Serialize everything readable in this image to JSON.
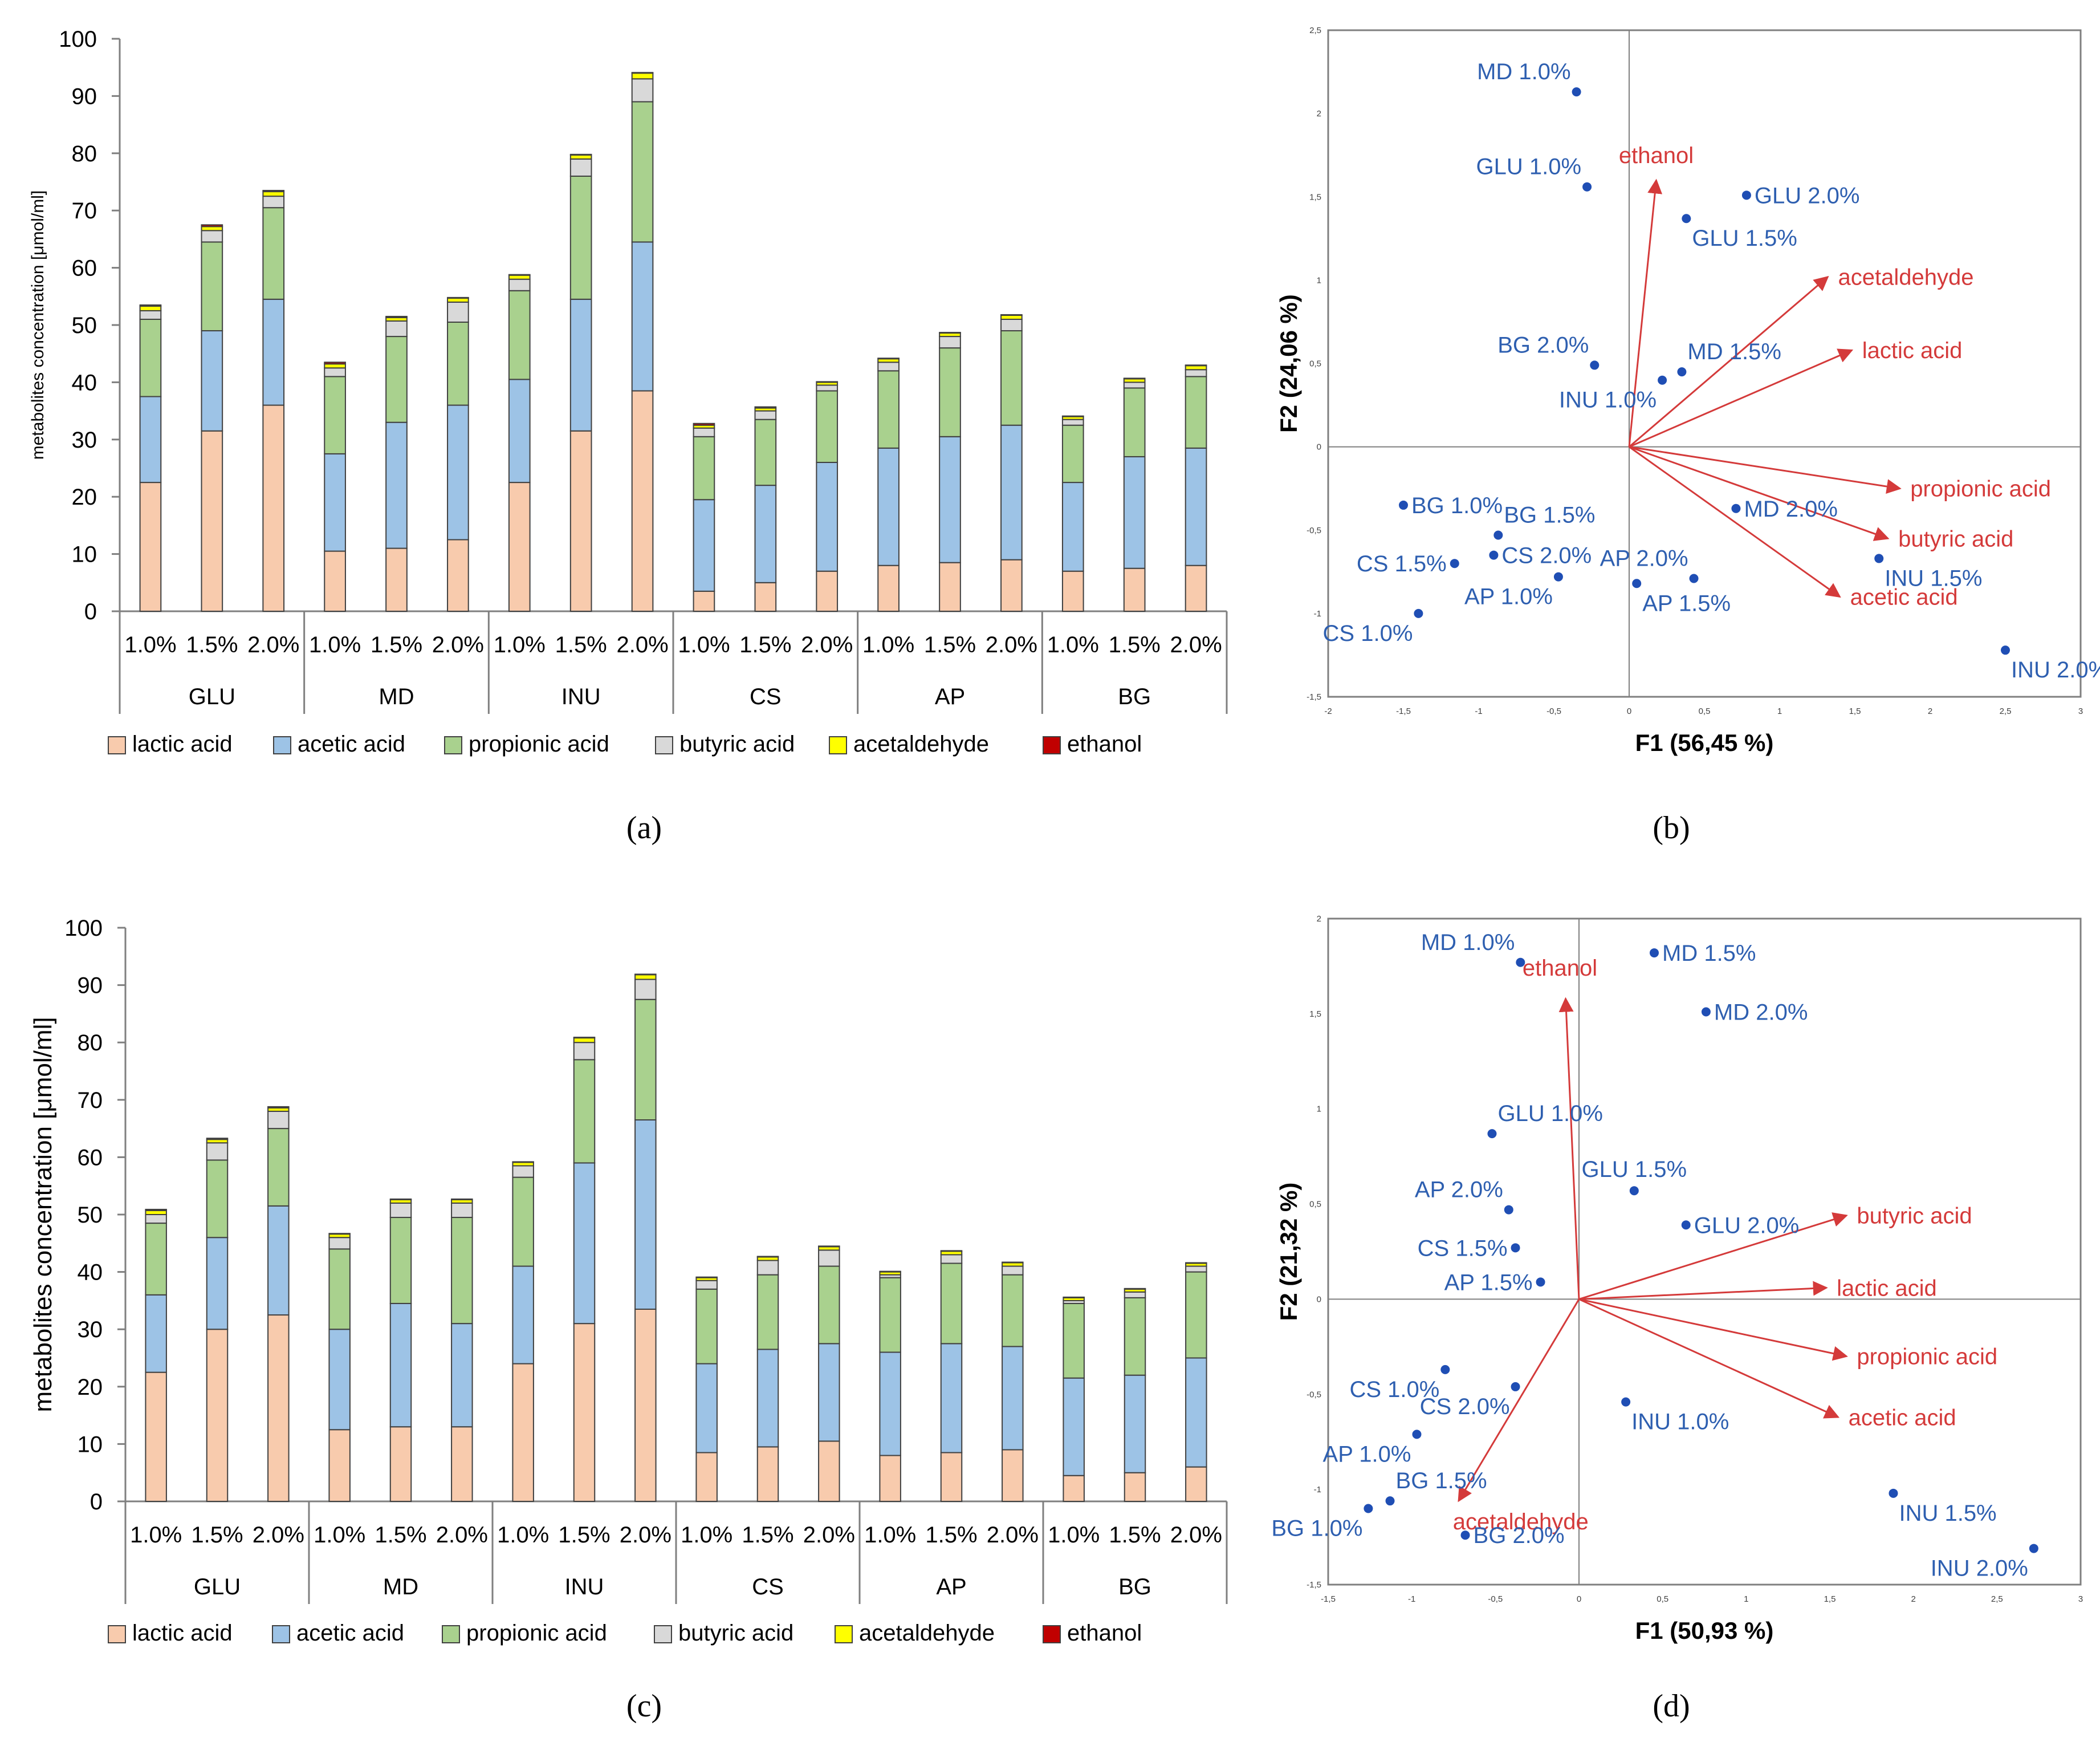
{
  "colors": {
    "lactic": "#f8cbad",
    "acetic": "#9dc3e6",
    "propionic": "#a9d18e",
    "butyric": "#d9d9d9",
    "acetaldehyde": "#ffff00",
    "ethanol": "#c00000",
    "point": "#1f4eb4",
    "label": "#2e5fb0",
    "arrow": "#d43a3a"
  },
  "chart_data": [
    {
      "id": "a",
      "panel_label": "(a)",
      "type": "bar",
      "stacked": true,
      "ylabel": "metabolites concentration [μmol/ml]",
      "ylim": [
        0,
        100
      ],
      "yticks": [
        "0",
        "10",
        "20",
        "30",
        "40",
        "50",
        "60",
        "70",
        "80",
        "90",
        "100"
      ],
      "groups": [
        "GLU",
        "MD",
        "INU",
        "CS",
        "AP",
        "BG"
      ],
      "categories": [
        "1.0%",
        "1.5%",
        "2.0%"
      ],
      "legend": [
        "lactic acid",
        "acetic acid",
        "propionic acid",
        "butyric acid",
        "acetaldehyde",
        "ethanol"
      ],
      "series_keys": [
        "lactic",
        "acetic",
        "propionic",
        "butyric",
        "acetaldehyde",
        "ethanol"
      ],
      "bars": [
        {
          "group": "GLU",
          "cat": "1.0%",
          "values": [
            22.5,
            15.0,
            13.5,
            1.5,
            0.8,
            0.2
          ]
        },
        {
          "group": "GLU",
          "cat": "1.5%",
          "values": [
            31.5,
            17.5,
            15.5,
            2.0,
            0.7,
            0.3
          ]
        },
        {
          "group": "GLU",
          "cat": "2.0%",
          "values": [
            36.0,
            18.5,
            16.0,
            2.0,
            0.8,
            0.2
          ]
        },
        {
          "group": "MD",
          "cat": "1.0%",
          "values": [
            10.5,
            17.0,
            13.5,
            1.5,
            0.7,
            0.3
          ]
        },
        {
          "group": "MD",
          "cat": "1.5%",
          "values": [
            11.0,
            22.0,
            15.0,
            2.7,
            0.6,
            0.2
          ]
        },
        {
          "group": "MD",
          "cat": "2.0%",
          "values": [
            12.5,
            23.5,
            14.5,
            3.5,
            0.7,
            0.1
          ]
        },
        {
          "group": "INU",
          "cat": "1.0%",
          "values": [
            22.5,
            18.0,
            15.5,
            2.0,
            0.7,
            0.1
          ]
        },
        {
          "group": "INU",
          "cat": "1.5%",
          "values": [
            31.5,
            23.0,
            21.5,
            3.0,
            0.7,
            0.1
          ]
        },
        {
          "group": "INU",
          "cat": "2.0%",
          "values": [
            38.5,
            26.0,
            24.5,
            4.0,
            1.0,
            0.1
          ]
        },
        {
          "group": "CS",
          "cat": "1.0%",
          "values": [
            3.5,
            16.0,
            11.0,
            1.5,
            0.5,
            0.3
          ]
        },
        {
          "group": "CS",
          "cat": "1.5%",
          "values": [
            5.0,
            17.0,
            11.5,
            1.5,
            0.5,
            0.2
          ]
        },
        {
          "group": "CS",
          "cat": "2.0%",
          "values": [
            7.0,
            19.0,
            12.5,
            1.0,
            0.5,
            0.1
          ]
        },
        {
          "group": "AP",
          "cat": "1.0%",
          "values": [
            8.0,
            20.5,
            13.5,
            1.5,
            0.6,
            0.1
          ]
        },
        {
          "group": "AP",
          "cat": "1.5%",
          "values": [
            8.5,
            22.0,
            15.5,
            2.0,
            0.6,
            0.1
          ]
        },
        {
          "group": "AP",
          "cat": "2.0%",
          "values": [
            9.0,
            23.5,
            16.5,
            2.0,
            0.7,
            0.1
          ]
        },
        {
          "group": "BG",
          "cat": "1.0%",
          "values": [
            7.0,
            15.5,
            10.0,
            1.0,
            0.5,
            0.1
          ]
        },
        {
          "group": "BG",
          "cat": "1.5%",
          "values": [
            7.5,
            19.5,
            12.0,
            1.0,
            0.6,
            0.1
          ]
        },
        {
          "group": "BG",
          "cat": "2.0%",
          "values": [
            8.0,
            20.5,
            12.5,
            1.2,
            0.7,
            0.1
          ]
        }
      ]
    },
    {
      "id": "b",
      "panel_label": "(b)",
      "type": "scatter",
      "xlabel": "F1 (56,45 %)",
      "ylabel": "F2 (24,06 %)",
      "xlim": [
        -2,
        3
      ],
      "ylim": [
        -1.5,
        2.5
      ],
      "xticks": [
        -2,
        -1.5,
        -1,
        -0.5,
        0,
        0.5,
        1,
        1.5,
        2,
        2.5,
        3
      ],
      "yticks": [
        -1.5,
        -1,
        -0.5,
        0,
        0.5,
        1,
        1.5,
        2,
        2.5
      ],
      "xtick_labels": [
        "-2",
        "-1,5",
        "-1",
        "-0,5",
        "0",
        "0,5",
        "1",
        "1,5",
        "2",
        "2,5",
        "3"
      ],
      "ytick_labels": [
        "-1,5",
        "-1",
        "-0,5",
        "0",
        "0,5",
        "1",
        "1,5",
        "2",
        "2,5"
      ],
      "points": [
        {
          "label": "MD 1.0%",
          "x": -0.35,
          "y": 2.13,
          "pos": "tl"
        },
        {
          "label": "GLU 1.0%",
          "x": -0.28,
          "y": 1.56,
          "pos": "tl"
        },
        {
          "label": "GLU 2.0%",
          "x": 0.78,
          "y": 1.51,
          "pos": "r"
        },
        {
          "label": "GLU 1.5%",
          "x": 0.38,
          "y": 1.37,
          "pos": "br"
        },
        {
          "label": "BG 2.0%",
          "x": -0.23,
          "y": 0.49,
          "pos": "tl"
        },
        {
          "label": "MD 1.5%",
          "x": 0.35,
          "y": 0.45,
          "pos": "tr"
        },
        {
          "label": "INU 1.0%",
          "x": 0.22,
          "y": 0.4,
          "pos": "bl"
        },
        {
          "label": "BG 1.0%",
          "x": -1.5,
          "y": -0.35,
          "pos": "r"
        },
        {
          "label": "BG 1.5%",
          "x": -0.87,
          "y": -0.53,
          "pos": "tr"
        },
        {
          "label": "CS 2.0%",
          "x": -0.9,
          "y": -0.65,
          "pos": "r"
        },
        {
          "label": "CS 1.5%",
          "x": -1.16,
          "y": -0.7,
          "pos": "l"
        },
        {
          "label": "AP 1.0%",
          "x": -0.47,
          "y": -0.78,
          "pos": "bl"
        },
        {
          "label": "AP 1.5%",
          "x": 0.05,
          "y": -0.82,
          "pos": "br"
        },
        {
          "label": "AP 2.0%",
          "x": 0.43,
          "y": -0.79,
          "pos": "tl"
        },
        {
          "label": "MD 2.0%",
          "x": 0.71,
          "y": -0.37,
          "pos": "r"
        },
        {
          "label": "CS 1.0%",
          "x": -1.4,
          "y": -1.0,
          "pos": "bl"
        },
        {
          "label": "INU 1.5%",
          "x": 1.66,
          "y": -0.67,
          "pos": "br"
        },
        {
          "label": "INU 2.0%",
          "x": 2.5,
          "y": -1.22,
          "pos": "br"
        }
      ],
      "vectors": [
        {
          "label": "ethanol",
          "x": 0.18,
          "y": 1.6,
          "pos": "t"
        },
        {
          "label": "acetaldehyde",
          "x": 1.32,
          "y": 1.02,
          "pos": "r"
        },
        {
          "label": "lactic acid",
          "x": 1.48,
          "y": 0.58,
          "pos": "r"
        },
        {
          "label": "propionic acid",
          "x": 1.8,
          "y": -0.25,
          "pos": "r"
        },
        {
          "label": "butyric acid",
          "x": 1.72,
          "y": -0.55,
          "pos": "r"
        },
        {
          "label": "acetic acid",
          "x": 1.4,
          "y": -0.9,
          "pos": "r"
        }
      ]
    },
    {
      "id": "c",
      "panel_label": "(c)",
      "type": "bar",
      "stacked": true,
      "ylabel": "metabolites concentration [μmol/ml]",
      "ylim": [
        0,
        100
      ],
      "yticks": [
        "0",
        "10",
        "20",
        "30",
        "40",
        "50",
        "60",
        "70",
        "80",
        "90",
        "100"
      ],
      "groups": [
        "GLU",
        "MD",
        "INU",
        "CS",
        "AP",
        "BG"
      ],
      "categories": [
        "1.0%",
        "1.5%",
        "2.0%"
      ],
      "legend": [
        "lactic acid",
        "acetic acid",
        "propionic acid",
        "butyric acid",
        "acetaldehyde",
        "ethanol"
      ],
      "series_keys": [
        "lactic",
        "acetic",
        "propionic",
        "butyric",
        "acetaldehyde",
        "ethanol"
      ],
      "bars": [
        {
          "group": "GLU",
          "cat": "1.0%",
          "values": [
            22.5,
            13.5,
            12.5,
            1.5,
            0.7,
            0.2
          ]
        },
        {
          "group": "GLU",
          "cat": "1.5%",
          "values": [
            30.0,
            16.0,
            13.5,
            3.0,
            0.6,
            0.2
          ]
        },
        {
          "group": "GLU",
          "cat": "2.0%",
          "values": [
            32.5,
            19.0,
            13.5,
            3.0,
            0.6,
            0.2
          ]
        },
        {
          "group": "MD",
          "cat": "1.0%",
          "values": [
            12.5,
            17.5,
            14.0,
            2.0,
            0.6,
            0.1
          ]
        },
        {
          "group": "MD",
          "cat": "1.5%",
          "values": [
            13.0,
            21.5,
            15.0,
            2.5,
            0.6,
            0.1
          ]
        },
        {
          "group": "MD",
          "cat": "2.0%",
          "values": [
            13.0,
            18.0,
            18.5,
            2.5,
            0.6,
            0.1
          ]
        },
        {
          "group": "INU",
          "cat": "1.0%",
          "values": [
            24.0,
            17.0,
            15.5,
            2.0,
            0.6,
            0.1
          ]
        },
        {
          "group": "INU",
          "cat": "1.5%",
          "values": [
            31.0,
            28.0,
            18.0,
            3.0,
            0.8,
            0.1
          ]
        },
        {
          "group": "INU",
          "cat": "2.0%",
          "values": [
            33.5,
            33.0,
            21.0,
            3.5,
            0.8,
            0.1
          ]
        },
        {
          "group": "CS",
          "cat": "1.0%",
          "values": [
            8.5,
            15.5,
            13.0,
            1.5,
            0.5,
            0.1
          ]
        },
        {
          "group": "CS",
          "cat": "1.5%",
          "values": [
            9.5,
            17.0,
            13.0,
            2.5,
            0.6,
            0.1
          ]
        },
        {
          "group": "CS",
          "cat": "2.0%",
          "values": [
            10.5,
            17.0,
            13.5,
            2.8,
            0.6,
            0.1
          ]
        },
        {
          "group": "AP",
          "cat": "1.0%",
          "values": [
            8.0,
            18.0,
            13.0,
            0.5,
            0.5,
            0.1
          ]
        },
        {
          "group": "AP",
          "cat": "1.5%",
          "values": [
            8.5,
            19.0,
            14.0,
            1.5,
            0.6,
            0.1
          ]
        },
        {
          "group": "AP",
          "cat": "2.0%",
          "values": [
            9.0,
            18.0,
            12.5,
            1.5,
            0.6,
            0.1
          ]
        },
        {
          "group": "BG",
          "cat": "1.0%",
          "values": [
            4.5,
            17.0,
            13.0,
            0.5,
            0.5,
            0.1
          ]
        },
        {
          "group": "BG",
          "cat": "1.5%",
          "values": [
            5.0,
            17.0,
            13.5,
            1.0,
            0.5,
            0.1
          ]
        },
        {
          "group": "BG",
          "cat": "2.0%",
          "values": [
            6.0,
            19.0,
            15.0,
            1.0,
            0.5,
            0.1
          ]
        }
      ]
    },
    {
      "id": "d",
      "panel_label": "(d)",
      "type": "scatter",
      "xlabel": "F1 (50,93 %)",
      "ylabel": "F2 (21,32 %)",
      "xlim": [
        -1.5,
        3
      ],
      "ylim": [
        -1.5,
        2
      ],
      "xticks": [
        -1.5,
        -1,
        -0.5,
        0,
        0.5,
        1,
        1.5,
        2,
        2.5,
        3
      ],
      "yticks": [
        -1.5,
        -1,
        -0.5,
        0,
        0.5,
        1,
        1.5,
        2
      ],
      "xtick_labels": [
        "-1,5",
        "-1",
        "-0,5",
        "0",
        "0,5",
        "1",
        "1,5",
        "2",
        "2,5",
        "3"
      ],
      "ytick_labels": [
        "-1,5",
        "-1",
        "-0,5",
        "0",
        "0,5",
        "1",
        "1,5",
        "2"
      ],
      "points": [
        {
          "label": "MD 1.0%",
          "x": -0.35,
          "y": 1.77,
          "pos": "tl"
        },
        {
          "label": "MD 1.5%",
          "x": 0.45,
          "y": 1.82,
          "pos": "r"
        },
        {
          "label": "MD 2.0%",
          "x": 0.76,
          "y": 1.51,
          "pos": "r"
        },
        {
          "label": "GLU 1.0%",
          "x": -0.52,
          "y": 0.87,
          "pos": "tr"
        },
        {
          "label": "GLU 1.5%",
          "x": 0.33,
          "y": 0.57,
          "pos": "t"
        },
        {
          "label": "GLU 2.0%",
          "x": 0.64,
          "y": 0.39,
          "pos": "r"
        },
        {
          "label": "AP 2.0%",
          "x": -0.42,
          "y": 0.47,
          "pos": "tl"
        },
        {
          "label": "CS 1.5%",
          "x": -0.38,
          "y": 0.27,
          "pos": "l"
        },
        {
          "label": "AP 1.5%",
          "x": -0.23,
          "y": 0.09,
          "pos": "l"
        },
        {
          "label": "CS 1.0%",
          "x": -0.8,
          "y": -0.37,
          "pos": "bl"
        },
        {
          "label": "CS 2.0%",
          "x": -0.38,
          "y": -0.46,
          "pos": "bl"
        },
        {
          "label": "INU 1.0%",
          "x": 0.28,
          "y": -0.54,
          "pos": "br"
        },
        {
          "label": "AP 1.0%",
          "x": -0.97,
          "y": -0.71,
          "pos": "bl"
        },
        {
          "label": "BG 1.5%",
          "x": -1.13,
          "y": -1.06,
          "pos": "tr"
        },
        {
          "label": "BG 1.0%",
          "x": -1.26,
          "y": -1.1,
          "pos": "bl"
        },
        {
          "label": "BG 2.0%",
          "x": -0.68,
          "y": -1.24,
          "pos": "r"
        },
        {
          "label": "INU 1.5%",
          "x": 1.88,
          "y": -1.02,
          "pos": "br"
        },
        {
          "label": "INU 2.0%",
          "x": 2.72,
          "y": -1.31,
          "pos": "bl"
        }
      ],
      "vectors": [
        {
          "label": "ethanol",
          "x": -0.08,
          "y": 1.58,
          "pos": "tl"
        },
        {
          "label": "acetaldehyde",
          "x": -0.72,
          "y": -1.06,
          "pos": "br"
        },
        {
          "label": "butyric acid",
          "x": 1.6,
          "y": 0.44,
          "pos": "r"
        },
        {
          "label": "lactic acid",
          "x": 1.48,
          "y": 0.06,
          "pos": "r"
        },
        {
          "label": "propionic acid",
          "x": 1.6,
          "y": -0.3,
          "pos": "r"
        },
        {
          "label": "acetic acid",
          "x": 1.55,
          "y": -0.62,
          "pos": "r"
        }
      ]
    }
  ]
}
